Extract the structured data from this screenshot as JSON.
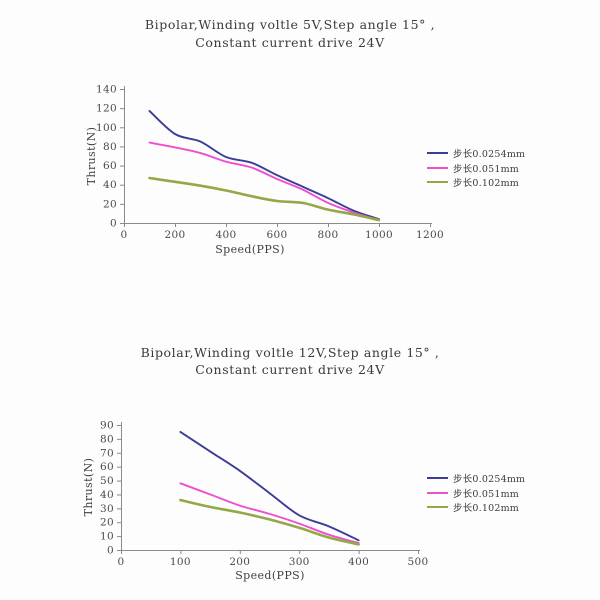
{
  "window": {
    "background": "#fdfdfd"
  },
  "chart_data": [
    {
      "type": "line",
      "title_line1": "Bipolar,Winding voltle 5V,Step angle 15° ,",
      "title_line2": "Constant current drive 24V",
      "xlabel": "Speed(PPS)",
      "ylabel": "Thrust(N)",
      "xlim": [
        0,
        1200
      ],
      "ylim": [
        0,
        140
      ],
      "xticks": [
        0,
        200,
        400,
        600,
        800,
        1000,
        1200
      ],
      "yticks": [
        0,
        20,
        40,
        60,
        80,
        100,
        120,
        140
      ],
      "grid": false,
      "legend_position": "right",
      "x": [
        100,
        200,
        300,
        400,
        500,
        600,
        700,
        800,
        900,
        1000
      ],
      "series": [
        {
          "name": "步长0.0254mm",
          "color": "#3c3c99",
          "values": [
            117,
            93,
            85,
            69,
            63,
            50,
            38,
            26,
            13,
            4
          ]
        },
        {
          "name": "步长0.051mm",
          "color": "#ee4fd0",
          "values": [
            84,
            79,
            73,
            64,
            58,
            46,
            35,
            21,
            11,
            3
          ]
        },
        {
          "name": "步长0.102mm",
          "color": "#93a846",
          "values": [
            47,
            43,
            39,
            34,
            28,
            23,
            21,
            14,
            9,
            3
          ]
        }
      ]
    },
    {
      "type": "line",
      "title_line1": "Bipolar,Winding voltle 12V,Step angle 15° ,",
      "title_line2": "Constant current drive 24V",
      "xlabel": "Speed(PPS)",
      "ylabel": "Thrust(N)",
      "xlim": [
        0,
        500
      ],
      "ylim": [
        0,
        90
      ],
      "xticks": [
        0,
        100,
        200,
        300,
        400,
        500
      ],
      "yticks": [
        0,
        10,
        20,
        30,
        40,
        50,
        60,
        70,
        80,
        90
      ],
      "grid": false,
      "legend_position": "right",
      "x": [
        100,
        150,
        200,
        250,
        300,
        350,
        400
      ],
      "series": [
        {
          "name": "步长0.0254mm",
          "color": "#3c3c99",
          "values": [
            85,
            71,
            57,
            41,
            25,
            17,
            7
          ]
        },
        {
          "name": "步长0.051mm",
          "color": "#ee4fd0",
          "values": [
            48,
            40,
            32,
            26,
            19,
            11,
            5
          ]
        },
        {
          "name": "步长0.102mm",
          "color": "#93a846",
          "values": [
            36,
            31,
            27,
            22,
            16,
            9,
            4
          ]
        }
      ]
    }
  ],
  "axis_style": {
    "axis_color": "#8a8a8a",
    "tick_label_color": "#4a4a4a"
  }
}
